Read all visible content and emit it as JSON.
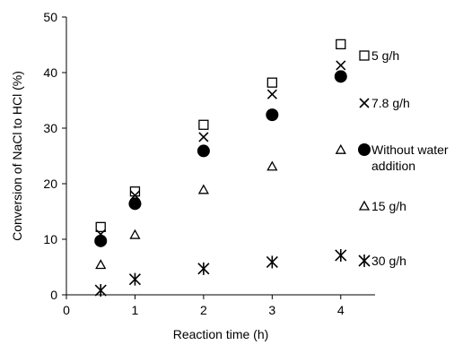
{
  "chart_data": {
    "type": "scatter",
    "xlabel": "Reaction time (h)",
    "ylabel": "Conversion of NaCl to HCl (%)",
    "xlim": [
      0,
      4.5
    ],
    "ylim": [
      0,
      50
    ],
    "x_ticks": [
      0,
      1,
      2,
      3,
      4
    ],
    "y_ticks": [
      0,
      10,
      20,
      30,
      40,
      50
    ],
    "grid": false,
    "legend_position": "right",
    "series": [
      {
        "name": "5 g/h",
        "marker": "open-square",
        "x": [
          0.5,
          1,
          2,
          3,
          4
        ],
        "y": [
          12.2,
          18.6,
          30.6,
          38.2,
          45.1
        ]
      },
      {
        "name": "7.8 g/h",
        "marker": "x",
        "x": [
          0.5,
          1,
          2,
          3,
          4
        ],
        "y": [
          10.9,
          17.9,
          28.4,
          36.1,
          41.3
        ]
      },
      {
        "name": "Without water addition",
        "marker": "filled-circle",
        "x": [
          0.5,
          1,
          2,
          3,
          4
        ],
        "y": [
          9.7,
          16.4,
          25.9,
          32.4,
          39.3
        ]
      },
      {
        "name": "15 g/h",
        "marker": "open-triangle",
        "x": [
          0.5,
          1,
          2,
          3,
          4
        ],
        "y": [
          5.4,
          10.8,
          18.9,
          23.1,
          26.1
        ]
      },
      {
        "name": "30 g/h",
        "marker": "asterisk",
        "x": [
          0.5,
          1,
          2,
          3,
          4
        ],
        "y": [
          0.8,
          2.8,
          4.7,
          5.9,
          7.1
        ]
      }
    ],
    "legend": [
      {
        "label_lines": [
          "5 g/h"
        ]
      },
      {
        "label_lines": [
          "7.8 g/h"
        ]
      },
      {
        "label_lines": [
          "Without water",
          "addition"
        ]
      },
      {
        "label_lines": [
          "15 g/h"
        ]
      },
      {
        "label_lines": [
          "30 g/h"
        ]
      }
    ]
  }
}
